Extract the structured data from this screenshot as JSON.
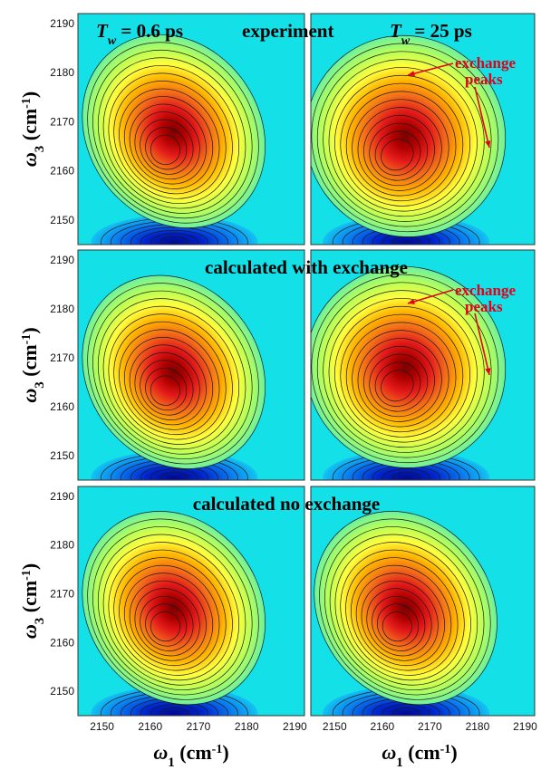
{
  "chart_data": {
    "type": "contour",
    "layout": "3 rows x 2 columns",
    "xlabel": {
      "symbol": "ω",
      "sub": "1",
      "unit": " (cm",
      "sup": "-1",
      "close": ")"
    },
    "ylabel": {
      "symbol": "ω",
      "sub": "3",
      "unit": " (cm",
      "sup": "-1",
      "close": ")"
    },
    "xlim": [
      2145,
      2192
    ],
    "ylim": [
      2145,
      2192
    ],
    "xticks": [
      2150,
      2160,
      2170,
      2180,
      2190
    ],
    "yticks": [
      2150,
      2160,
      2170,
      2180,
      2190
    ],
    "colors": {
      "background": "#14e0e8",
      "max": "#8b0000",
      "mid": "#ffff3c",
      "negative": "#0010b4",
      "contour_line": "#1a1a1a",
      "annotation": "#e3001b"
    },
    "titles": {
      "tw_left": {
        "T": "T",
        "sub": "w",
        "text": " = 0.6 ps"
      },
      "experiment": "experiment",
      "tw_right": {
        "T": "T",
        "sub": "w",
        "text": " = 25 ps"
      },
      "row2": "calculated with exchange",
      "row3": "calculated no exchange"
    },
    "annotation": {
      "line1": "exchange",
      "line2": "peaks"
    },
    "panels": [
      {
        "row": 1,
        "col": 1,
        "peak_center": [
          2163,
          2164
        ],
        "exchange": false
      },
      {
        "row": 1,
        "col": 2,
        "peak_center": [
          2163,
          2163
        ],
        "exchange": true
      },
      {
        "row": 2,
        "col": 1,
        "peak_center": [
          2163,
          2163
        ],
        "exchange": false
      },
      {
        "row": 2,
        "col": 2,
        "peak_center": [
          2163,
          2164
        ],
        "exchange": true
      },
      {
        "row": 3,
        "col": 1,
        "peak_center": [
          2163,
          2163
        ],
        "exchange": false
      },
      {
        "row": 3,
        "col": 2,
        "peak_center": [
          2163,
          2163
        ],
        "exchange": false
      }
    ]
  }
}
